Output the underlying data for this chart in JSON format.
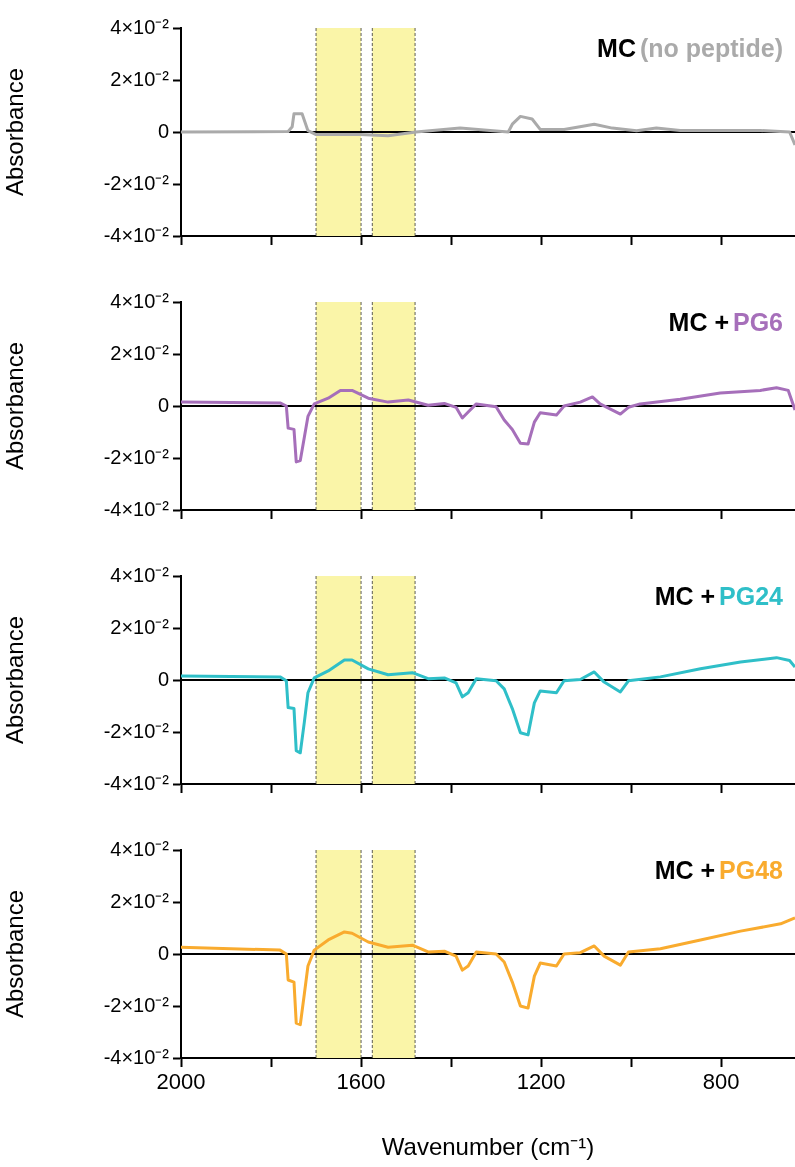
{
  "chart_data": [
    {
      "type": "line",
      "title": "MC",
      "ylabel": "Absorbance",
      "xlim": [
        2000,
        636
      ],
      "xticks": [
        2000,
        {
          "value": 1800,
          "label": null
        },
        1600,
        {
          "value": 1400,
          "label": null
        },
        1200,
        {
          "value": 1000,
          "label": null
        },
        800
      ],
      "ylim": [
        -0.04,
        0.04
      ],
      "yticks": [
        {
          "value": -0.04,
          "label": "-4×10⁻²"
        },
        {
          "value": -0.02,
          "label": "-2×10⁻²"
        },
        {
          "value": 0,
          "label": "0"
        },
        {
          "value": 0.02,
          "label": "2×10⁻²"
        },
        {
          "value": 0.04,
          "label": "4×10⁻²"
        }
      ],
      "tick_labels": "y",
      "marker": "none",
      "bands": [
        {
          "axis": "x",
          "from": 1700,
          "to": 1600,
          "color": "#faf5a8"
        },
        {
          "axis": "x",
          "from": 1575,
          "to": 1480,
          "color": "#faf5a8"
        }
      ],
      "ref_lines": [
        {
          "axis": "y",
          "value": 0,
          "color": "#000000"
        }
      ],
      "series": [
        {
          "name": "(no peptide)",
          "color": "#aaaaaa",
          "x": [
            2000,
            1762,
            1753,
            1749,
            1731,
            1718,
            1700,
            1602,
            1540,
            1478,
            1380,
            1273,
            1264,
            1246,
            1220,
            1202,
            1149,
            1082,
            1042,
            988,
            944,
            891,
            713,
            648,
            636
          ],
          "values": [
            0,
            0.0002,
            0.002,
            0.007,
            0.007,
            0.0005,
            -0.001,
            -0.001,
            -0.0014,
            0,
            0.0015,
            0,
            0.003,
            0.006,
            0.005,
            0.001,
            0.001,
            0.003,
            0.0015,
            0.0005,
            0.0015,
            0.0006,
            0.0006,
            0,
            -0.005
          ]
        }
      ]
    },
    {
      "type": "line",
      "title": "MC +",
      "ylabel": "Absorbance",
      "xlim": [
        2000,
        636
      ],
      "xticks": [
        2000,
        {
          "value": 1800,
          "label": null
        },
        1600,
        {
          "value": 1400,
          "label": null
        },
        1200,
        {
          "value": 1000,
          "label": null
        },
        800
      ],
      "ylim": [
        -0.04,
        0.04
      ],
      "yticks": [
        {
          "value": -0.04,
          "label": "-4×10⁻²"
        },
        {
          "value": -0.02,
          "label": "-2×10⁻²"
        },
        {
          "value": 0,
          "label": "0"
        },
        {
          "value": 0.02,
          "label": "2×10⁻²"
        },
        {
          "value": 0.04,
          "label": "4×10⁻²"
        }
      ],
      "tick_labels": "y",
      "marker": "none",
      "bands": [
        {
          "axis": "x",
          "from": 1700,
          "to": 1600,
          "color": "#faf5a8"
        },
        {
          "axis": "x",
          "from": 1575,
          "to": 1480,
          "color": "#faf5a8"
        }
      ],
      "ref_lines": [
        {
          "axis": "y",
          "value": 0,
          "color": "#000000"
        }
      ],
      "series": [
        {
          "name": "PG6",
          "color": "#a66fba",
          "x": [
            2000,
            1780,
            1766,
            1762,
            1749,
            1744,
            1735,
            1726,
            1718,
            1704,
            1673,
            1646,
            1620,
            1584,
            1540,
            1495,
            1451,
            1415,
            1389,
            1375,
            1362,
            1344,
            1300,
            1282,
            1264,
            1246,
            1229,
            1215,
            1202,
            1166,
            1149,
            1113,
            1086,
            1069,
            1024,
            1006,
            980,
            891,
            802,
            713,
            677,
            651,
            636
          ],
          "values": [
            0.0015,
            0.0012,
            0,
            -0.0085,
            -0.009,
            -0.0215,
            -0.021,
            -0.012,
            -0.004,
            0.0008,
            0.003,
            0.006,
            0.006,
            0.003,
            0.0015,
            0.0023,
            0.0003,
            0.001,
            -0.0005,
            -0.0046,
            -0.0023,
            0.0008,
            -0.0003,
            -0.0054,
            -0.009,
            -0.0143,
            -0.0146,
            -0.0062,
            -0.0026,
            -0.0035,
            0,
            0.0015,
            0.0035,
            0.0008,
            -0.0031,
            -0.0005,
            0.0008,
            0.0026,
            0.005,
            0.006,
            0.007,
            0.006,
            -0.0015
          ]
        }
      ]
    },
    {
      "type": "line",
      "title": "MC +",
      "ylabel": "Absorbance",
      "xlim": [
        2000,
        636
      ],
      "xticks": [
        2000,
        {
          "value": 1800,
          "label": null
        },
        1600,
        {
          "value": 1400,
          "label": null
        },
        1200,
        {
          "value": 1000,
          "label": null
        },
        800
      ],
      "ylim": [
        -0.04,
        0.04
      ],
      "yticks": [
        {
          "value": -0.04,
          "label": "-4×10⁻²"
        },
        {
          "value": -0.02,
          "label": "-2×10⁻²"
        },
        {
          "value": 0,
          "label": "0"
        },
        {
          "value": 0.02,
          "label": "2×10⁻²"
        },
        {
          "value": 0.04,
          "label": "4×10⁻²"
        }
      ],
      "tick_labels": "y",
      "marker": "none",
      "bands": [
        {
          "axis": "x",
          "from": 1700,
          "to": 1600,
          "color": "#faf5a8"
        },
        {
          "axis": "x",
          "from": 1575,
          "to": 1480,
          "color": "#faf5a8"
        }
      ],
      "ref_lines": [
        {
          "axis": "y",
          "value": 0,
          "color": "#000000"
        }
      ],
      "series": [
        {
          "name": "PG24",
          "color": "#2fbfc8",
          "x": [
            2000,
            1780,
            1766,
            1762,
            1749,
            1744,
            1735,
            1726,
            1718,
            1704,
            1673,
            1637,
            1620,
            1584,
            1540,
            1486,
            1451,
            1415,
            1389,
            1375,
            1362,
            1344,
            1300,
            1282,
            1264,
            1246,
            1229,
            1215,
            1202,
            1166,
            1149,
            1113,
            1082,
            1060,
            1024,
            1006,
            935,
            846,
            757,
            677,
            648,
            636
          ],
          "values": [
            0.0015,
            0.0012,
            -0.0003,
            -0.0106,
            -0.011,
            -0.0272,
            -0.028,
            -0.0162,
            -0.0049,
            0.0008,
            0.0035,
            0.0077,
            0.0077,
            0.0043,
            0.002,
            0.0028,
            0.0005,
            0.0008,
            -0.0011,
            -0.0065,
            -0.0049,
            0.0005,
            -0.0003,
            -0.0034,
            -0.011,
            -0.0203,
            -0.0211,
            -0.0088,
            -0.0042,
            -0.0049,
            -0.0003,
            0.0002,
            0.0031,
            -0.0008,
            -0.0046,
            -0.0003,
            0.0012,
            0.0043,
            0.0069,
            0.0086,
            0.0075,
            0.005
          ]
        }
      ]
    },
    {
      "type": "line",
      "title": "MC +",
      "ylabel": "Absorbance",
      "xlabel": "Wavenumber (cm⁻¹)",
      "xlim": [
        2000,
        636
      ],
      "xticks": [
        2000,
        {
          "value": 1800,
          "label": null
        },
        1600,
        {
          "value": 1400,
          "label": null
        },
        1200,
        {
          "value": 1000,
          "label": null
        },
        800
      ],
      "ylim": [
        -0.04,
        0.04
      ],
      "yticks": [
        {
          "value": -0.04,
          "label": "-4×10⁻²"
        },
        {
          "value": -0.02,
          "label": "-2×10⁻²"
        },
        {
          "value": 0,
          "label": "0"
        },
        {
          "value": 0.02,
          "label": "2×10⁻²"
        },
        {
          "value": 0.04,
          "label": "4×10⁻²"
        }
      ],
      "marker": "none",
      "bands": [
        {
          "axis": "x",
          "from": 1700,
          "to": 1600,
          "color": "#faf5a8"
        },
        {
          "axis": "x",
          "from": 1575,
          "to": 1480,
          "color": "#faf5a8"
        }
      ],
      "ref_lines": [
        {
          "axis": "y",
          "value": 0,
          "color": "#000000"
        }
      ],
      "series": [
        {
          "name": "PG48",
          "color": "#f9ab2e",
          "x": [
            2000,
            1780,
            1766,
            1762,
            1749,
            1744,
            1735,
            1726,
            1718,
            1704,
            1673,
            1637,
            1620,
            1584,
            1540,
            1486,
            1451,
            1415,
            1389,
            1375,
            1362,
            1344,
            1300,
            1282,
            1264,
            1246,
            1229,
            1215,
            1202,
            1166,
            1149,
            1113,
            1082,
            1060,
            1024,
            1006,
            935,
            846,
            757,
            668,
            636
          ],
          "values": [
            0.0026,
            0.0015,
            0,
            -0.01,
            -0.0108,
            -0.0266,
            -0.0272,
            -0.0154,
            -0.0046,
            0.0015,
            0.0054,
            0.0085,
            0.008,
            0.0046,
            0.0026,
            0.0034,
            0.0008,
            0.0011,
            -0.0008,
            -0.0062,
            -0.0046,
            0.0008,
            0,
            -0.0031,
            -0.0108,
            -0.02,
            -0.0208,
            -0.0085,
            -0.0035,
            -0.0046,
            0,
            0.0005,
            0.0031,
            -0.0008,
            -0.0043,
            0.0008,
            0.002,
            0.0054,
            0.0088,
            0.0116,
            0.0139
          ]
        }
      ]
    }
  ]
}
